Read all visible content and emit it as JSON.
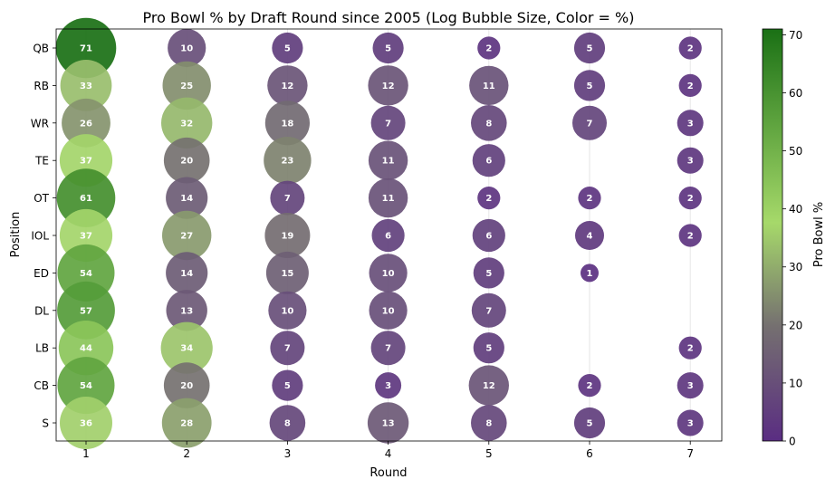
{
  "chart_data": {
    "type": "scatter",
    "title": "Pro Bowl % by Draft Round since 2005 (Log Bubble Size, Color = %)",
    "xlabel": "Round",
    "ylabel": "Position",
    "categories_x": [
      "1",
      "2",
      "3",
      "4",
      "5",
      "6",
      "7"
    ],
    "categories_y": [
      "QB",
      "RB",
      "WR",
      "TE",
      "OT",
      "IOL",
      "ED",
      "DL",
      "LB",
      "CB",
      "S"
    ],
    "values": {
      "QB": [
        71,
        10,
        5,
        5,
        2,
        5,
        2
      ],
      "RB": [
        33,
        25,
        12,
        12,
        11,
        5,
        2
      ],
      "WR": [
        26,
        32,
        18,
        7,
        8,
        7,
        3
      ],
      "TE": [
        37,
        20,
        23,
        11,
        6,
        null,
        3
      ],
      "OT": [
        61,
        14,
        7,
        11,
        2,
        2,
        2
      ],
      "IOL": [
        37,
        27,
        19,
        6,
        6,
        4,
        2
      ],
      "ED": [
        54,
        14,
        15,
        10,
        5,
        1,
        null
      ],
      "DL": [
        57,
        13,
        10,
        10,
        7,
        null,
        null
      ],
      "LB": [
        44,
        34,
        7,
        7,
        5,
        null,
        2
      ],
      "CB": [
        54,
        20,
        5,
        3,
        12,
        2,
        3
      ],
      "S": [
        36,
        28,
        8,
        13,
        8,
        5,
        3
      ]
    },
    "colorbar": {
      "label": "Pro Bowl %",
      "range": [
        0,
        71
      ],
      "ticks": [
        "0",
        "10",
        "20",
        "30",
        "40",
        "50",
        "60",
        "70"
      ],
      "colors": [
        "#5a2d82",
        "#757070",
        "#a6d96a",
        "#1a7015"
      ]
    }
  }
}
